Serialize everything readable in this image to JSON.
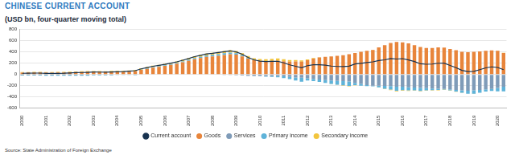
{
  "chart_data": {
    "type": "bar",
    "title": "CHINESE CURRENT ACCOUNT",
    "subtitle": "(USD bn, four-quarter moving total)",
    "source": "Source: State Administration of Foreign Exchange",
    "stacked": true,
    "grid": true,
    "legend": "bottom",
    "ylim": [
      -600,
      800
    ],
    "yticks": [
      -600,
      -400,
      -200,
      0,
      200,
      400,
      600,
      800
    ],
    "categories": [
      "2000",
      null,
      null,
      null,
      "2001",
      null,
      null,
      null,
      "2002",
      null,
      null,
      null,
      "2003",
      null,
      null,
      null,
      "2004",
      null,
      null,
      null,
      "2005",
      null,
      null,
      null,
      "2006",
      null,
      null,
      null,
      "2007",
      null,
      null,
      null,
      "2008",
      null,
      null,
      null,
      "2009",
      null,
      null,
      null,
      "2010",
      null,
      null,
      null,
      "2011",
      null,
      null,
      null,
      "2012",
      null,
      null,
      null,
      "2013",
      null,
      null,
      null,
      "2014",
      null,
      null,
      null,
      "2015",
      null,
      null,
      null,
      "2016",
      null,
      null,
      null,
      "2017",
      null,
      null,
      null,
      "2018",
      null,
      null,
      null,
      "2019",
      null,
      null,
      null,
      "2020",
      null
    ],
    "series": [
      {
        "name": "Current account",
        "type": "line",
        "color": "#17324f",
        "values": [
          20,
          21,
          23,
          23,
          18,
          18,
          19,
          21,
          26,
          31,
          34,
          37,
          42,
          41,
          38,
          44,
          47,
          50,
          57,
          66,
          98,
          122,
          145,
          161,
          179,
          201,
          223,
          252,
          282,
          316,
          340,
          363,
          374,
          388,
          404,
          419,
          400,
          358,
          301,
          259,
          237,
          229,
          231,
          234,
          205,
          170,
          145,
          118,
          155,
          170,
          170,
          163,
          148,
          141,
          139,
          146,
          185,
          197,
          210,
          223,
          247,
          259,
          281,
          273,
          280,
          257,
          229,
          188,
          180,
          184,
          198,
          199,
          159,
          120,
          71,
          49,
          53,
          84,
          116,
          134,
          123,
          84
        ]
      },
      {
        "name": "Goods",
        "type": "bar",
        "color": "#e8853b",
        "values": [
          32,
          33,
          34,
          35,
          33,
          32,
          33,
          34,
          36,
          40,
          42,
          44,
          44,
          42,
          40,
          45,
          42,
          44,
          50,
          59,
          80,
          100,
          120,
          134,
          150,
          170,
          190,
          217,
          240,
          270,
          290,
          311,
          320,
          330,
          345,
          360,
          350,
          320,
          280,
          250,
          240,
          235,
          240,
          246,
          235,
          225,
          230,
          228,
          250,
          280,
          300,
          312,
          320,
          330,
          340,
          359,
          380,
          400,
          420,
          435,
          480,
          520,
          560,
          576,
          570,
          550,
          520,
          489,
          470,
          470,
          480,
          476,
          450,
          430,
          400,
          395,
          400,
          410,
          420,
          425,
          420,
          380
        ]
      },
      {
        "name": "Services",
        "type": "bar",
        "color": "#7f9bb8",
        "values": [
          -5,
          -5,
          -5,
          -6,
          -6,
          -6,
          -6,
          -6,
          -7,
          -7,
          -7,
          -7,
          -8,
          -8,
          -9,
          -9,
          -9,
          -9,
          -9,
          -10,
          -10,
          -10,
          -9,
          -9,
          -9,
          -9,
          -9,
          -9,
          -8,
          -8,
          -8,
          -8,
          -10,
          -10,
          -11,
          -12,
          -15,
          -20,
          -25,
          -30,
          -30,
          -30,
          -30,
          -30,
          -35,
          -45,
          -55,
          -60,
          -70,
          -80,
          -90,
          -100,
          -110,
          -115,
          -120,
          -125,
          -150,
          -170,
          -190,
          -200,
          -200,
          -205,
          -210,
          -218,
          -220,
          -230,
          -235,
          -241,
          -245,
          -250,
          -255,
          -260,
          -265,
          -275,
          -285,
          -292,
          -285,
          -275,
          -265,
          -260,
          -240,
          -220
        ]
      },
      {
        "name": "Primary income",
        "type": "bar",
        "color": "#5fb3d9",
        "values": [
          -15,
          -15,
          -15,
          -15,
          -18,
          -18,
          -18,
          -18,
          -15,
          -15,
          -15,
          -15,
          -10,
          -10,
          -10,
          -10,
          -5,
          -5,
          -5,
          -5,
          5,
          8,
          10,
          11,
          12,
          13,
          14,
          15,
          20,
          22,
          24,
          25,
          28,
          30,
          30,
          29,
          25,
          20,
          10,
          5,
          -5,
          -10,
          -15,
          -20,
          -30,
          -40,
          -55,
          -70,
          -40,
          -40,
          -45,
          -50,
          -60,
          -70,
          -75,
          -80,
          -40,
          -30,
          -20,
          -13,
          -30,
          -50,
          -60,
          -73,
          -60,
          -55,
          -50,
          -55,
          -40,
          -30,
          -20,
          -10,
          -20,
          -30,
          -40,
          -51,
          -60,
          -50,
          -40,
          -33,
          -60,
          -80
        ]
      },
      {
        "name": "Secondary income",
        "type": "bar",
        "color": "#f2c53d",
        "values": [
          8,
          8,
          9,
          9,
          9,
          10,
          10,
          11,
          12,
          13,
          14,
          15,
          16,
          17,
          17,
          18,
          19,
          20,
          21,
          22,
          23,
          24,
          24,
          25,
          26,
          27,
          28,
          29,
          30,
          32,
          34,
          35,
          36,
          38,
          40,
          42,
          40,
          38,
          36,
          34,
          32,
          34,
          36,
          38,
          35,
          30,
          25,
          20,
          15,
          10,
          5,
          1,
          -2,
          -4,
          -6,
          -8,
          -5,
          -3,
          0,
          1,
          -3,
          -6,
          -9,
          -12,
          -10,
          -8,
          -6,
          -5,
          -5,
          -6,
          -7,
          -7,
          -6,
          -5,
          -4,
          -3,
          -2,
          -1,
          1,
          2,
          3,
          4
        ]
      }
    ]
  }
}
